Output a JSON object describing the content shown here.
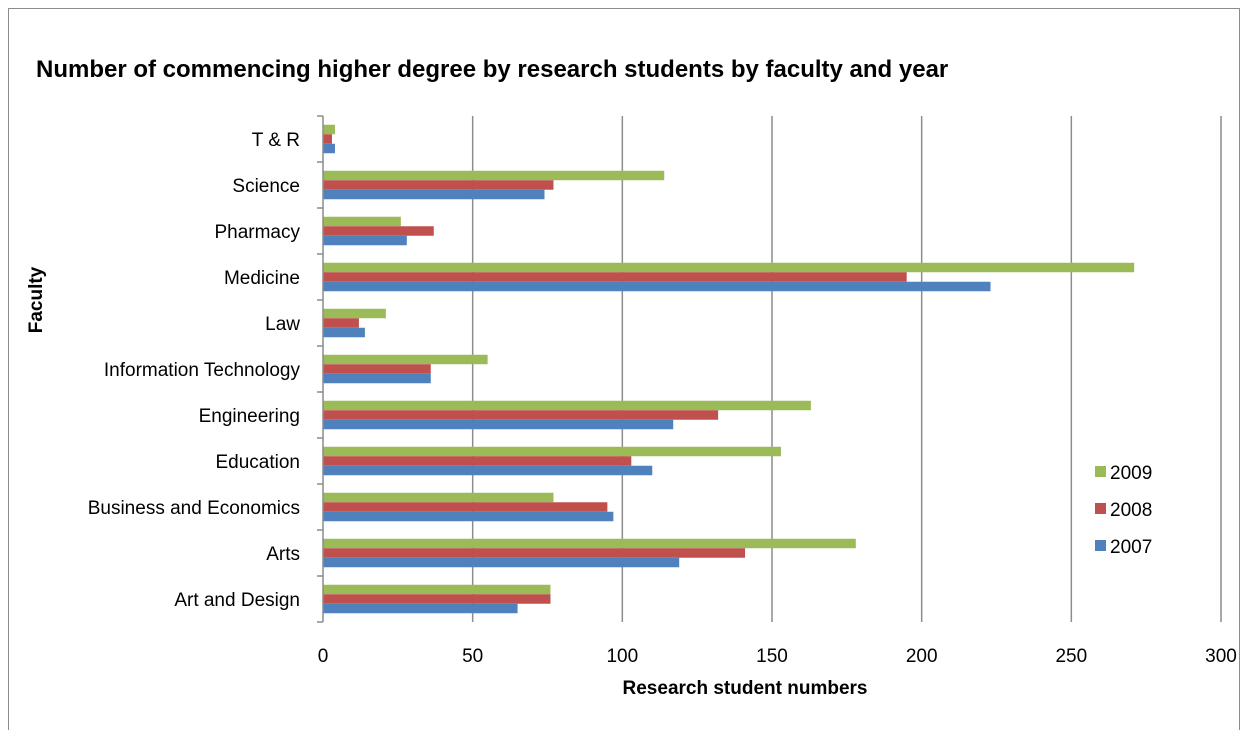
{
  "chart_data": {
    "type": "bar",
    "orientation": "horizontal",
    "title": "Number of commencing higher degree by research students by faculty and year",
    "xlabel": "Research student numbers",
    "ylabel": "Faculty",
    "categories": [
      "Art and Design",
      "Arts",
      "Business and Economics",
      "Education",
      "Engineering",
      "Information Technology",
      "Law",
      "Medicine",
      "Pharmacy",
      "Science",
      "T & R"
    ],
    "series": [
      {
        "name": "2007",
        "color": "#4f81bd",
        "values": [
          65,
          119,
          97,
          110,
          117,
          36,
          14,
          223,
          28,
          74,
          4
        ]
      },
      {
        "name": "2008",
        "color": "#c0504d",
        "values": [
          76,
          141,
          95,
          103,
          132,
          36,
          12,
          195,
          37,
          77,
          3
        ]
      },
      {
        "name": "2009",
        "color": "#9bbb59",
        "values": [
          76,
          178,
          77,
          153,
          163,
          55,
          21,
          271,
          26,
          114,
          4
        ]
      }
    ],
    "xlim": [
      0,
      300
    ],
    "xticks": [
      0,
      50,
      100,
      150,
      200,
      250,
      300
    ],
    "grid": true,
    "legend": "right"
  }
}
